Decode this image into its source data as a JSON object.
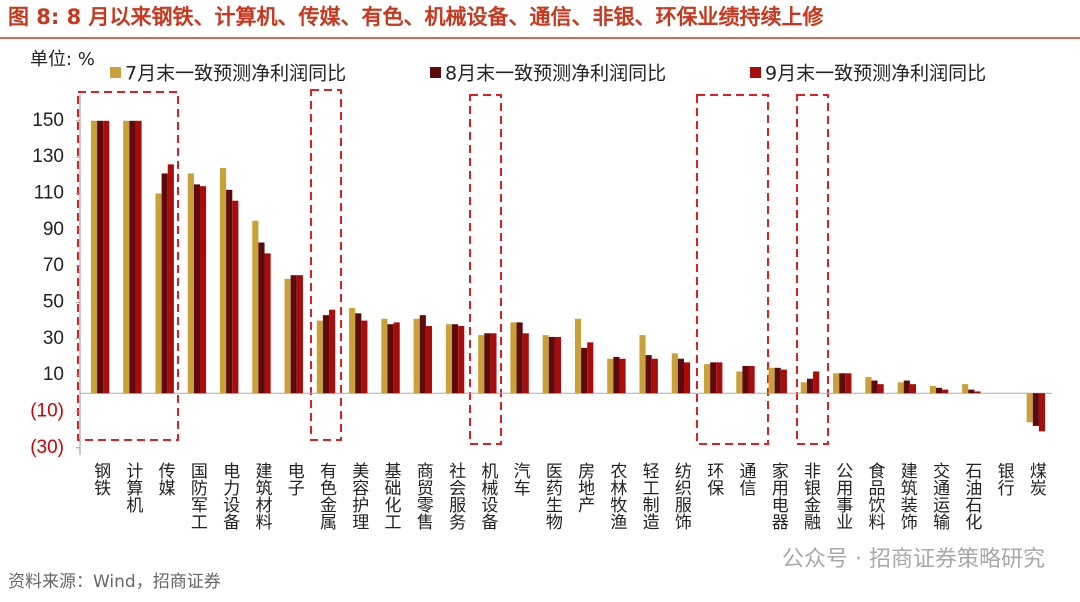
{
  "chart_data": {
    "type": "bar",
    "title": "图 8:  8 月以来钢铁、计算机、传媒、有色、机械设备、通信、非银、环保业绩持续上修",
    "unit_label": "单位: %",
    "source": "资料来源：Wind，招商证券",
    "watermark": "公众号 · 招商证券策略研究",
    "categories": [
      "钢铁",
      "计算机",
      "传媒",
      "国防军工",
      "电力设备",
      "建筑材料",
      "电子",
      "有色金属",
      "美容护理",
      "基础化工",
      "商贸零售",
      "社会服务",
      "机械设备",
      "汽车",
      "医药生物",
      "房地产",
      "农林牧渔",
      "轻工制造",
      "纺织服饰",
      "环保",
      "通信",
      "家用电器",
      "非银金融",
      "公用事业",
      "食品饮料",
      "建筑装饰",
      "交通运输",
      "石油石化",
      "银行",
      "煤炭"
    ],
    "series": [
      {
        "name": "7月末一致预测净利润同比",
        "color": "#c9a13a",
        "values": [
          150,
          150,
          110,
          121,
          124,
          95,
          63,
          40,
          47,
          41,
          41,
          38,
          32,
          39,
          32,
          41,
          19,
          32,
          22,
          16,
          12,
          14,
          6,
          11,
          9,
          6,
          4,
          5,
          0,
          -16
        ]
      },
      {
        "name": "8月末一致预测净利润同比",
        "color": "#5c0a0a",
        "values": [
          150,
          150,
          121,
          115,
          112,
          83,
          65,
          43,
          44,
          38,
          43,
          38,
          33,
          39,
          31,
          25,
          20,
          21,
          19,
          17,
          15,
          14,
          8,
          11,
          7,
          7,
          3,
          2,
          0,
          -18
        ]
      },
      {
        "name": "9月末一致预测净利润同比",
        "color": "#a80c0c",
        "values": [
          150,
          150,
          126,
          114,
          106,
          77,
          65,
          46,
          40,
          39,
          37,
          37,
          33,
          33,
          31,
          28,
          19,
          19,
          17,
          17,
          15,
          13,
          12,
          11,
          5,
          5,
          2,
          1,
          0,
          -21
        ]
      }
    ],
    "ylim": [
      -34,
      162
    ],
    "yticks": [
      {
        "value": -30,
        "label": "(30)"
      },
      {
        "value": -10,
        "label": "(10)"
      },
      10,
      30,
      50,
      70,
      90,
      110,
      130,
      150
    ],
    "grid": false
  }
}
